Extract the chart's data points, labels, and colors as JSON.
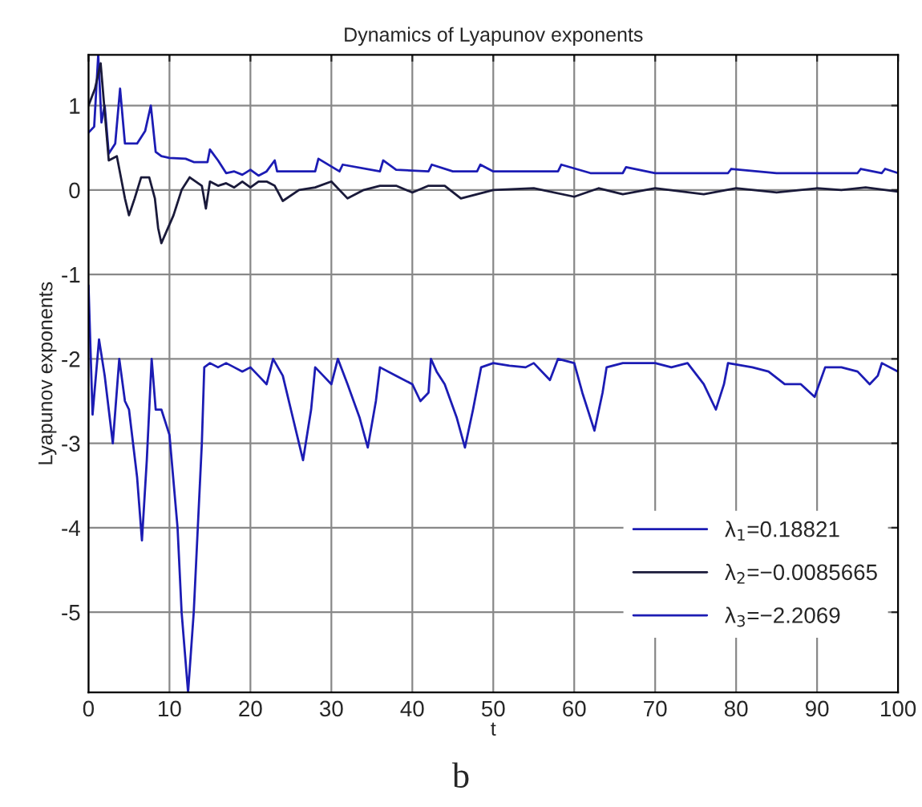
{
  "chart_data": {
    "type": "line",
    "title": "Dynamics of Lyapunov exponents",
    "xlabel": "t",
    "ylabel": "Lyapunov exponents",
    "annotations": [
      "b"
    ],
    "xlim": [
      0,
      100
    ],
    "ylim": [
      -5.95,
      1.6
    ],
    "xticks": [
      0,
      10,
      20,
      30,
      40,
      50,
      60,
      70,
      80,
      90,
      100
    ],
    "yticks": [
      -5,
      -4,
      -3,
      -2,
      -1,
      0,
      1
    ],
    "grid": true,
    "legend": "bottom right",
    "line_style": "solid",
    "marker": "none",
    "series": [
      {
        "name": "λ$_{1}$=0.18821",
        "color": "#1c1cb4",
        "x": [
          0,
          0.7,
          1.2,
          1.6,
          2,
          2.5,
          3.3,
          3.9,
          4.5,
          6,
          7,
          7.7,
          8.3,
          9,
          10,
          12,
          13,
          14.7,
          15,
          16,
          17,
          18,
          19,
          20,
          21,
          22,
          23,
          23.3,
          25,
          28,
          28.4,
          31,
          31.4,
          36,
          36.4,
          38,
          42,
          42.4,
          45,
          48,
          48.4,
          50,
          55,
          58,
          58.4,
          62,
          66,
          66.4,
          70,
          75,
          79,
          79.4,
          85,
          90,
          95,
          95.4,
          98,
          98.4,
          100
        ],
        "values": [
          0.68,
          0.75,
          1.6,
          0.8,
          1.0,
          0.43,
          0.55,
          1.2,
          0.55,
          0.55,
          0.7,
          1.0,
          0.45,
          0.4,
          0.38,
          0.37,
          0.33,
          0.33,
          0.48,
          0.35,
          0.2,
          0.22,
          0.18,
          0.24,
          0.17,
          0.22,
          0.35,
          0.22,
          0.22,
          0.22,
          0.37,
          0.22,
          0.3,
          0.22,
          0.35,
          0.24,
          0.22,
          0.3,
          0.22,
          0.22,
          0.3,
          0.22,
          0.22,
          0.22,
          0.3,
          0.2,
          0.2,
          0.27,
          0.2,
          0.2,
          0.2,
          0.25,
          0.2,
          0.2,
          0.2,
          0.25,
          0.2,
          0.25,
          0.2
        ]
      },
      {
        "name": "λ$_{2}$=−0.0085665",
        "color": "#1a1a3a",
        "x": [
          0,
          0.8,
          1.5,
          2.5,
          3.5,
          4.5,
          5,
          5.7,
          6.5,
          7.5,
          8.2,
          8.6,
          9,
          10.5,
          11.5,
          12.5,
          14,
          14.5,
          15,
          16,
          17,
          18,
          19,
          20,
          21,
          22,
          23,
          24,
          26,
          28,
          30,
          32,
          34,
          36,
          38,
          40,
          42,
          44,
          46,
          48,
          50,
          55,
          60,
          63,
          66,
          70,
          76,
          80,
          85,
          90,
          93,
          96,
          100
        ],
        "values": [
          1.0,
          1.2,
          1.5,
          0.35,
          0.4,
          -0.1,
          -0.3,
          -0.1,
          0.15,
          0.15,
          -0.1,
          -0.45,
          -0.63,
          -0.3,
          0.0,
          0.15,
          0.05,
          -0.22,
          0.1,
          0.05,
          0.08,
          0.03,
          0.1,
          0.03,
          0.1,
          0.1,
          0.05,
          -0.13,
          0.0,
          0.03,
          0.1,
          -0.1,
          0.0,
          0.05,
          0.05,
          -0.03,
          0.05,
          0.05,
          -0.1,
          -0.05,
          0.0,
          0.02,
          -0.08,
          0.02,
          -0.05,
          0.02,
          -0.05,
          0.02,
          -0.03,
          0.02,
          0.0,
          0.03,
          -0.02
        ]
      },
      {
        "name": "λ$_{3}$=−2.2069",
        "color": "#1c1cb4",
        "x": [
          0,
          0.5,
          1.3,
          2,
          3,
          3.8,
          4.5,
          5,
          6,
          6.6,
          7.2,
          7.8,
          8.3,
          9,
          10,
          11,
          11.5,
          12.3,
          13,
          13.5,
          14,
          14.3,
          15,
          16,
          17,
          18,
          19,
          20,
          21,
          22,
          22.8,
          24,
          25,
          26.5,
          27.5,
          28,
          29,
          30,
          30.8,
          32,
          33.5,
          34.5,
          35.5,
          36,
          38,
          40,
          41,
          42,
          42.3,
          43,
          44,
          45.5,
          46.5,
          47.5,
          48.5,
          50,
          52,
          54,
          55,
          57,
          58,
          60,
          61,
          62.5,
          63.5,
          64,
          66,
          70,
          72,
          74,
          76,
          77.5,
          78.5,
          79,
          82,
          84,
          86,
          88,
          89.7,
          91,
          93,
          95,
          96.5,
          97.5,
          98,
          100
        ],
        "values": [
          -1.13,
          -2.66,
          -1.77,
          -2.2,
          -3.0,
          -2.0,
          -2.5,
          -2.6,
          -3.4,
          -4.15,
          -3.2,
          -2.0,
          -2.6,
          -2.6,
          -2.9,
          -4.0,
          -5.0,
          -5.95,
          -5.0,
          -4.0,
          -3.0,
          -2.1,
          -2.05,
          -2.1,
          -2.05,
          -2.1,
          -2.15,
          -2.1,
          -2.2,
          -2.3,
          -2.0,
          -2.2,
          -2.6,
          -3.2,
          -2.6,
          -2.1,
          -2.2,
          -2.3,
          -2.0,
          -2.3,
          -2.7,
          -3.05,
          -2.5,
          -2.1,
          -2.2,
          -2.3,
          -2.5,
          -2.4,
          -2.0,
          -2.15,
          -2.3,
          -2.7,
          -3.05,
          -2.6,
          -2.1,
          -2.05,
          -2.08,
          -2.1,
          -2.05,
          -2.25,
          -2.0,
          -2.05,
          -2.4,
          -2.85,
          -2.4,
          -2.1,
          -2.05,
          -2.05,
          -2.1,
          -2.05,
          -2.3,
          -2.6,
          -2.3,
          -2.05,
          -2.1,
          -2.15,
          -2.3,
          -2.3,
          -2.45,
          -2.1,
          -2.1,
          -2.15,
          -2.3,
          -2.2,
          -2.05,
          -2.15
        ]
      }
    ]
  }
}
